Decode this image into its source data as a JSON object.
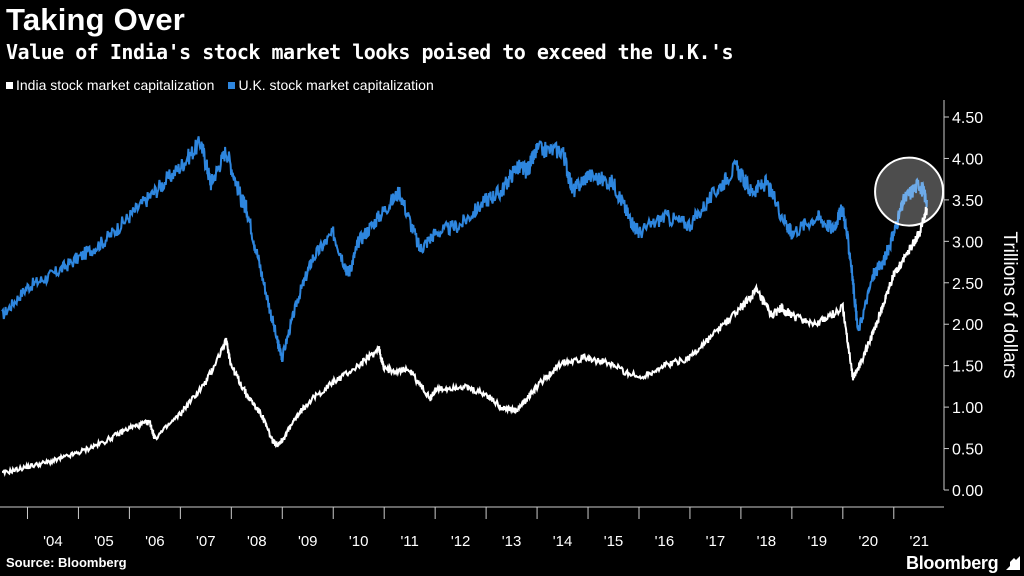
{
  "header": {
    "title": "Taking Over",
    "subtitle": "Value of India's stock market looks poised to exceed the U.K.'s"
  },
  "footer": {
    "source": "Source: Bloomberg",
    "brand": "Bloomberg"
  },
  "colors": {
    "india": "#ffffff",
    "uk": "#2e86de",
    "background": "#000000",
    "axis": "#cccccc"
  },
  "chart_data": {
    "type": "line",
    "title": "Taking Over",
    "subtitle": "Value of India's stock market looks poised to exceed the U.K.'s",
    "ylabel": "Trillions of dollars",
    "ylim": [
      0,
      4.5
    ],
    "yticks": [
      "0.00",
      "0.50",
      "1.00",
      "1.50",
      "2.00",
      "2.50",
      "3.00",
      "3.50",
      "4.00",
      "4.50"
    ],
    "xlim": [
      2003.5,
      2021.75
    ],
    "xticks": [
      "'04",
      "'05",
      "'06",
      "'07",
      "'08",
      "'09",
      "'10",
      "'11",
      "'12",
      "'13",
      "'14",
      "'15",
      "'16",
      "'17",
      "'18",
      "'19",
      "'20",
      "'21"
    ],
    "legend": "top-left",
    "annotation": "circle highlighting mid-2021",
    "series": [
      {
        "name": "India stock market capitalization",
        "color": "#ffffff",
        "x": [
          2003.5,
          2004.0,
          2004.5,
          2005.0,
          2005.5,
          2006.0,
          2006.4,
          2006.5,
          2007.0,
          2007.5,
          2007.9,
          2008.0,
          2008.3,
          2008.6,
          2008.8,
          2008.9,
          2009.0,
          2009.3,
          2009.5,
          2010.0,
          2010.5,
          2010.9,
          2011.0,
          2011.5,
          2011.9,
          2012.0,
          2012.5,
          2013.0,
          2013.3,
          2013.6,
          2013.8,
          2014.0,
          2014.5,
          2015.0,
          2015.5,
          2016.0,
          2016.5,
          2017.0,
          2017.5,
          2018.0,
          2018.3,
          2018.6,
          2018.8,
          2019.0,
          2019.5,
          2020.0,
          2020.2,
          2020.4,
          2020.6,
          2020.8,
          2021.0,
          2021.3,
          2021.5,
          2021.65
        ],
        "values": [
          0.2,
          0.28,
          0.35,
          0.45,
          0.58,
          0.75,
          0.82,
          0.62,
          0.92,
          1.3,
          1.8,
          1.5,
          1.15,
          0.9,
          0.6,
          0.55,
          0.6,
          0.9,
          1.05,
          1.3,
          1.5,
          1.7,
          1.45,
          1.45,
          1.1,
          1.2,
          1.25,
          1.15,
          1.0,
          0.95,
          1.1,
          1.25,
          1.55,
          1.6,
          1.5,
          1.35,
          1.5,
          1.6,
          1.9,
          2.2,
          2.4,
          2.1,
          2.2,
          2.1,
          2.0,
          2.2,
          1.35,
          1.6,
          1.9,
          2.25,
          2.6,
          2.9,
          3.1,
          3.4
        ]
      },
      {
        "name": "U.K. stock market capitalization",
        "color": "#2e86de",
        "x": [
          2003.5,
          2004.0,
          2004.5,
          2005.0,
          2005.5,
          2006.0,
          2006.5,
          2007.0,
          2007.4,
          2007.6,
          2007.9,
          2008.2,
          2008.3,
          2008.6,
          2008.9,
          2009.0,
          2009.3,
          2009.6,
          2010.0,
          2010.3,
          2010.5,
          2010.9,
          2011.3,
          2011.7,
          2012.0,
          2012.5,
          2013.0,
          2013.3,
          2013.6,
          2013.8,
          2014.0,
          2014.5,
          2014.7,
          2015.0,
          2015.5,
          2015.8,
          2016.0,
          2016.5,
          2017.0,
          2017.5,
          2017.9,
          2018.2,
          2018.5,
          2018.9,
          2019.0,
          2019.5,
          2019.8,
          2020.0,
          2020.15,
          2020.3,
          2020.6,
          2020.8,
          2021.0,
          2021.2,
          2021.5,
          2021.65
        ],
        "values": [
          2.1,
          2.45,
          2.6,
          2.8,
          3.0,
          3.3,
          3.6,
          3.9,
          4.2,
          3.7,
          4.1,
          3.5,
          3.4,
          2.6,
          1.8,
          1.6,
          2.3,
          2.8,
          3.1,
          2.6,
          3.0,
          3.3,
          3.6,
          2.9,
          3.1,
          3.2,
          3.5,
          3.6,
          3.9,
          3.85,
          4.1,
          4.1,
          3.6,
          3.8,
          3.7,
          3.3,
          3.1,
          3.3,
          3.2,
          3.6,
          3.9,
          3.6,
          3.7,
          3.2,
          3.1,
          3.3,
          3.15,
          3.4,
          2.8,
          1.9,
          2.6,
          2.75,
          3.1,
          3.5,
          3.7,
          3.5
        ]
      }
    ]
  }
}
